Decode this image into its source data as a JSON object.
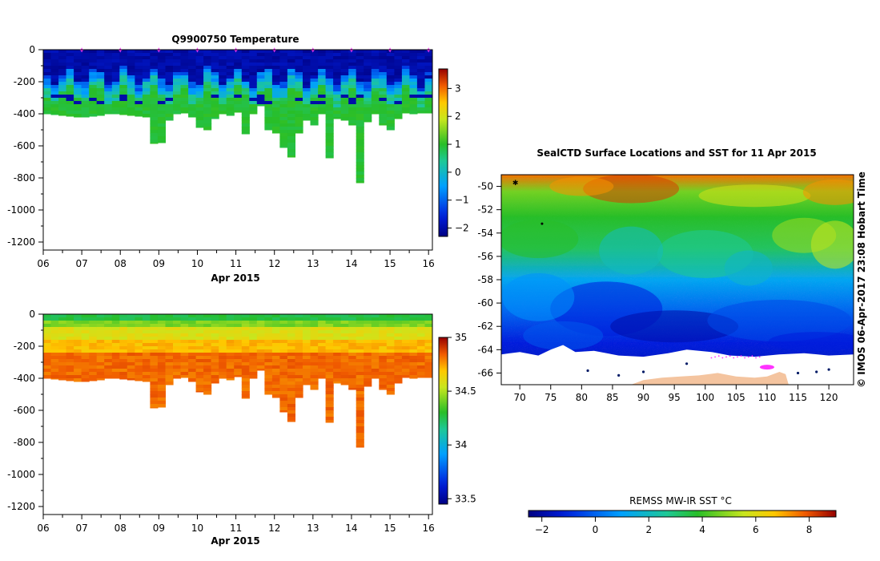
{
  "colors": {
    "land": "#f4c49f",
    "ice": "#ffffff",
    "profile_marker": "#ff33ff",
    "axis": "#000000"
  },
  "chart_data": [
    {
      "id": "temperature",
      "type": "heatmap",
      "title": "Q9900750  Temperature",
      "xlabel": "Apr 2015",
      "ylabel": "",
      "x_ticks": [
        "06",
        "07",
        "08",
        "09",
        "10",
        "11",
        "12",
        "13",
        "14",
        "15",
        "16"
      ],
      "xlim": [
        6,
        16.1
      ],
      "ylim": [
        -1250,
        0
      ],
      "y_ticks": [
        0,
        -200,
        -400,
        -600,
        -800,
        -1000,
        -1200
      ],
      "y_tick_labels": [
        "0",
        "-200",
        "-400",
        "-600",
        "-800",
        "-1000",
        "-1200"
      ],
      "colorbar": {
        "min": -2.3,
        "max": 3.7,
        "ticks": [
          3,
          2,
          1,
          0,
          -1,
          -2
        ],
        "tick_labels": [
          "3",
          "2",
          "1",
          "0",
          "−1",
          "−2"
        ]
      },
      "profile_days": [
        7,
        8,
        9,
        10,
        11,
        12,
        13,
        14,
        15,
        16
      ],
      "profile_depths_m": [
        400,
        405,
        410,
        415,
        420,
        420,
        415,
        410,
        400,
        400,
        405,
        410,
        415,
        420,
        585,
        580,
        440,
        400,
        395,
        420,
        485,
        500,
        430,
        400,
        410,
        390,
        525,
        400,
        350,
        500,
        520,
        610,
        670,
        520,
        440,
        470,
        400,
        675,
        430,
        440,
        470,
        830,
        450,
        400,
        470,
        500,
        430,
        395,
        400,
        395,
        395
      ]
    },
    {
      "id": "salinity",
      "type": "heatmap",
      "title": "",
      "xlabel": "Apr 2015",
      "ylabel": "",
      "x_ticks": [
        "06",
        "07",
        "08",
        "09",
        "10",
        "11",
        "12",
        "13",
        "14",
        "15",
        "16"
      ],
      "xlim": [
        6,
        16.1
      ],
      "ylim": [
        -1250,
        0
      ],
      "y_ticks": [
        0,
        -200,
        -400,
        -600,
        -800,
        -1000,
        -1200
      ],
      "y_tick_labels": [
        "0",
        "-200",
        "-400",
        "-600",
        "-800",
        "-1000",
        "-1200"
      ],
      "colorbar": {
        "min": 33.45,
        "max": 35.0,
        "ticks": [
          35,
          34.5,
          34,
          33.5
        ],
        "tick_labels": [
          "35",
          "34.5",
          "34",
          "33.5"
        ]
      }
    },
    {
      "id": "sst_map",
      "type": "heatmap",
      "title": "SealCTD Surface Locations and SST for 11 Apr 2015",
      "xlabel": "",
      "ylabel": "",
      "x_ticks": [
        70,
        75,
        80,
        85,
        90,
        95,
        100,
        105,
        110,
        115,
        120
      ],
      "x_tick_labels": [
        "70",
        "75",
        "80",
        "85",
        "90",
        "95",
        "100",
        "105",
        "110",
        "115",
        "120"
      ],
      "xlim": [
        67,
        124
      ],
      "y_ticks": [
        -50,
        -52,
        -54,
        -56,
        -58,
        -60,
        -62,
        -64,
        -66
      ],
      "y_tick_labels": [
        "-50",
        "-52",
        "-54",
        "-56",
        "-58",
        "-60",
        "-62",
        "-64",
        "-66"
      ],
      "ylim": [
        -67,
        -49
      ],
      "annotation": "©  IMOS 06-Apr-2017 23:08 Hobart Time",
      "colorbar": {
        "label": "REMSS MW-IR SST °C",
        "min": -2.5,
        "max": 9,
        "ticks": [
          -2,
          0,
          2,
          4,
          6,
          8
        ],
        "tick_labels": [
          "−2",
          "0",
          "2",
          "4",
          "6",
          "8"
        ]
      }
    }
  ]
}
